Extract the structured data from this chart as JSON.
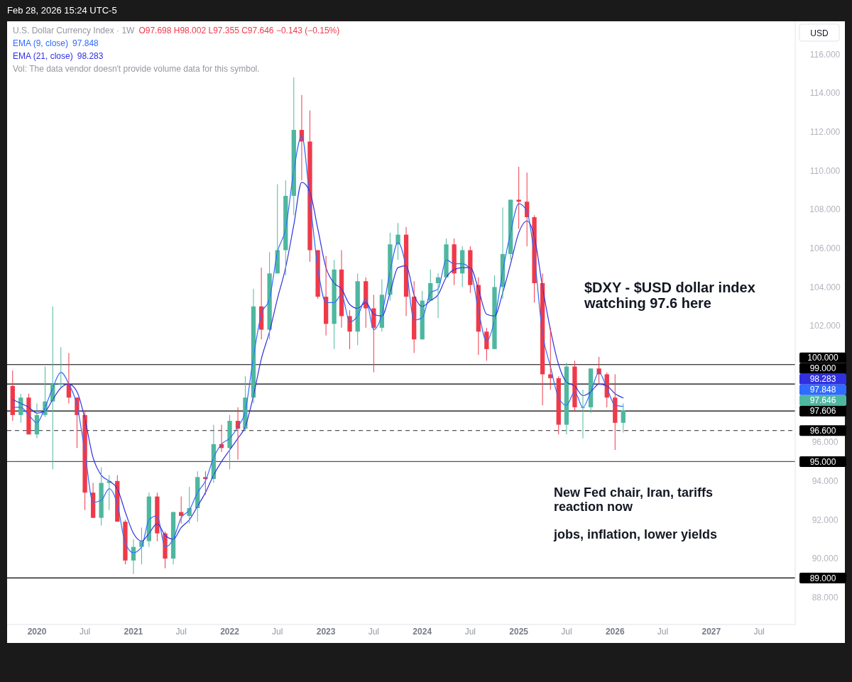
{
  "chart_data": {
    "type": "candlestick",
    "title": "U.S. Dollar Currency Index · 1W",
    "ylabel": "USD",
    "annotations": [
      "Feb 28, 2026 15:24 UTC-5",
      "O97.698 H98.002 L97.355 C97.646 −0.143 (−0.15%)",
      "Vol: The data vendor doesn't provide volume data for this symbol.",
      "$DXY - $USD dollar index\nwatching 97.6 here",
      "New Fed chair, Iran, tariffs\nreaction now",
      "jobs, inflation, lower yields",
      "97.848",
      "98.283",
      "97.646"
    ],
    "x": [
      "2019-10",
      "2019-11",
      "2019-12",
      "2020-01",
      "2020-02",
      "2020-03",
      "2020-04",
      "2020-05",
      "2020-06",
      "2020-07",
      "2020-08",
      "2020-09",
      "2020-10",
      "2020-11",
      "2020-12",
      "2021-01",
      "2021-02",
      "2021-03",
      "2021-04",
      "2021-05",
      "2021-06",
      "2021-07",
      "2021-08",
      "2021-09",
      "2021-10",
      "2021-11",
      "2021-12",
      "2022-01",
      "2022-02",
      "2022-03",
      "2022-04",
      "2022-05",
      "2022-06",
      "2022-07",
      "2022-08",
      "2022-09",
      "2022-10",
      "2022-11",
      "2022-12",
      "2023-01",
      "2023-02",
      "2023-03",
      "2023-04",
      "2023-05",
      "2023-06",
      "2023-07",
      "2023-08",
      "2023-09",
      "2023-10",
      "2023-11",
      "2023-12",
      "2024-01",
      "2024-02",
      "2024-03",
      "2024-04",
      "2024-05",
      "2024-06",
      "2024-07",
      "2024-08",
      "2024-09",
      "2024-10",
      "2024-11",
      "2024-12",
      "2025-01",
      "2025-02",
      "2025-03",
      "2025-04",
      "2025-05",
      "2025-06",
      "2025-07",
      "2025-08",
      "2025-09",
      "2025-10",
      "2025-11",
      "2025-12",
      "2026-01",
      "2026-02"
    ],
    "ohlc": [
      [
        98.9,
        99.7,
        97.1,
        97.4
      ],
      [
        97.4,
        98.5,
        97.0,
        98.3
      ],
      [
        98.3,
        98.5,
        96.4,
        96.4
      ],
      [
        96.4,
        98.0,
        96.2,
        97.4
      ],
      [
        97.4,
        99.9,
        97.3,
        98.1
      ],
      [
        98.1,
        103.0,
        94.6,
        99.0
      ],
      [
        99.0,
        100.9,
        98.8,
        99.0
      ],
      [
        99.0,
        100.6,
        98.0,
        98.3
      ],
      [
        98.3,
        98.3,
        95.7,
        97.4
      ],
      [
        97.4,
        97.6,
        92.5,
        93.4
      ],
      [
        93.4,
        93.9,
        92.1,
        92.1
      ],
      [
        92.1,
        94.7,
        91.7,
        93.9
      ],
      [
        93.9,
        94.3,
        92.5,
        94.0
      ],
      [
        94.0,
        94.3,
        91.9,
        91.9
      ],
      [
        91.9,
        92.0,
        89.7,
        89.9
      ],
      [
        89.9,
        91.0,
        89.2,
        90.6
      ],
      [
        90.6,
        91.6,
        89.7,
        90.9
      ],
      [
        90.9,
        93.4,
        90.6,
        93.2
      ],
      [
        93.2,
        93.4,
        90.9,
        91.3
      ],
      [
        91.3,
        91.4,
        89.5,
        90.0
      ],
      [
        90.0,
        92.4,
        89.7,
        92.4
      ],
      [
        92.4,
        93.2,
        91.8,
        92.2
      ],
      [
        92.2,
        93.7,
        91.8,
        92.6
      ],
      [
        92.6,
        94.5,
        91.9,
        94.2
      ],
      [
        94.2,
        94.5,
        93.3,
        94.1
      ],
      [
        94.1,
        96.9,
        93.9,
        95.9
      ],
      [
        95.9,
        96.9,
        95.5,
        95.7
      ],
      [
        95.7,
        97.4,
        94.6,
        97.1
      ],
      [
        97.1,
        97.8,
        95.1,
        96.7
      ],
      [
        96.7,
        99.4,
        96.6,
        98.3
      ],
      [
        98.3,
        103.9,
        98.0,
        103.0
      ],
      [
        103.0,
        105.0,
        101.3,
        101.8
      ],
      [
        101.8,
        105.8,
        101.3,
        104.7
      ],
      [
        104.7,
        109.3,
        104.7,
        105.9
      ],
      [
        105.9,
        109.5,
        104.6,
        108.7
      ],
      [
        108.7,
        114.8,
        107.7,
        112.1
      ],
      [
        112.1,
        113.9,
        109.5,
        111.5
      ],
      [
        111.5,
        113.1,
        105.3,
        105.9
      ],
      [
        105.9,
        105.9,
        103.4,
        103.5
      ],
      [
        103.5,
        105.6,
        101.5,
        102.1
      ],
      [
        102.1,
        105.4,
        100.8,
        104.9
      ],
      [
        104.9,
        105.9,
        101.9,
        102.5
      ],
      [
        102.5,
        102.8,
        100.8,
        101.7
      ],
      [
        101.7,
        104.7,
        101.0,
        104.3
      ],
      [
        104.3,
        104.5,
        101.9,
        102.9
      ],
      [
        102.9,
        103.6,
        99.6,
        101.9
      ],
      [
        101.9,
        104.4,
        101.7,
        103.6
      ],
      [
        103.6,
        106.8,
        103.3,
        106.2
      ],
      [
        106.2,
        107.3,
        105.4,
        106.7
      ],
      [
        106.7,
        107.1,
        102.5,
        103.5
      ],
      [
        103.5,
        104.3,
        100.6,
        101.3
      ],
      [
        101.3,
        103.8,
        101.3,
        103.3
      ],
      [
        103.3,
        104.9,
        103.3,
        104.2
      ],
      [
        104.2,
        104.7,
        102.4,
        104.5
      ],
      [
        104.5,
        106.5,
        104.5,
        106.2
      ],
      [
        106.2,
        106.5,
        104.1,
        104.7
      ],
      [
        104.7,
        106.1,
        104.0,
        105.9
      ],
      [
        105.9,
        106.1,
        103.7,
        104.1
      ],
      [
        104.1,
        104.5,
        100.5,
        101.7
      ],
      [
        101.7,
        101.9,
        100.2,
        100.8
      ],
      [
        100.8,
        104.6,
        100.8,
        104.0
      ],
      [
        104.0,
        108.1,
        103.4,
        105.7
      ],
      [
        105.7,
        108.5,
        105.4,
        108.5
      ],
      [
        108.5,
        110.2,
        107.0,
        108.4
      ],
      [
        108.4,
        109.9,
        106.1,
        107.6
      ],
      [
        107.6,
        107.7,
        103.2,
        104.2
      ],
      [
        104.2,
        104.7,
        97.9,
        99.5
      ],
      [
        99.5,
        101.9,
        98.7,
        99.3
      ],
      [
        99.3,
        99.4,
        96.4,
        96.9
      ],
      [
        96.9,
        100.1,
        96.4,
        99.9
      ],
      [
        99.9,
        100.2,
        97.6,
        97.8
      ],
      [
        97.8,
        98.7,
        96.2,
        97.8
      ],
      [
        97.8,
        99.8,
        97.5,
        99.8
      ],
      [
        99.8,
        100.4,
        99.0,
        99.5
      ],
      [
        99.5,
        99.6,
        97.8,
        98.3
      ],
      [
        98.3,
        99.5,
        95.6,
        97.0
      ],
      [
        97.0,
        98.0,
        96.5,
        97.646
      ]
    ],
    "colors": [
      "#ef3a4a",
      "#4fb7a0",
      "#ef3a4a",
      "#4fb7a0",
      "#4fb7a0",
      "#4fb7a0",
      "#4fb7a0",
      "#ef3a4a",
      "#ef3a4a",
      "#ef3a4a",
      "#ef3a4a",
      "#4fb7a0",
      "#4fb7a0",
      "#ef3a4a",
      "#ef3a4a",
      "#4fb7a0",
      "#4fb7a0",
      "#4fb7a0",
      "#ef3a4a",
      "#ef3a4a",
      "#4fb7a0",
      "#ef3a4a",
      "#4fb7a0",
      "#4fb7a0",
      "#ef3a4a",
      "#4fb7a0",
      "#ef3a4a",
      "#4fb7a0",
      "#ef3a4a",
      "#4fb7a0",
      "#4fb7a0",
      "#ef3a4a",
      "#4fb7a0",
      "#4fb7a0",
      "#4fb7a0",
      "#4fb7a0",
      "#ef3a4a",
      "#ef3a4a",
      "#ef3a4a",
      "#ef3a4a",
      "#4fb7a0",
      "#ef3a4a",
      "#ef3a4a",
      "#4fb7a0",
      "#ef3a4a",
      "#ef3a4a",
      "#4fb7a0",
      "#4fb7a0",
      "#4fb7a0",
      "#ef3a4a",
      "#ef3a4a",
      "#4fb7a0",
      "#4fb7a0",
      "#4fb7a0",
      "#4fb7a0",
      "#ef3a4a",
      "#4fb7a0",
      "#ef3a4a",
      "#ef3a4a",
      "#ef3a4a",
      "#4fb7a0",
      "#4fb7a0",
      "#4fb7a0",
      "#ef3a4a",
      "#ef3a4a",
      "#ef3a4a",
      "#ef3a4a",
      "#ef3a4a",
      "#ef3a4a",
      "#4fb7a0",
      "#ef3a4a",
      "#4fb7a0",
      "#4fb7a0",
      "#ef3a4a",
      "#ef3a4a",
      "#ef3a4a",
      "#4fb7a0"
    ],
    "series": [
      {
        "type": "line",
        "name": "EMA (9, close)",
        "color": "#2f6bff",
        "values": [
          97.8,
          97.8,
          97.4,
          97.0,
          97.8,
          98.8,
          99.6,
          99.0,
          97.9,
          95.5,
          92.9,
          93.0,
          93.6,
          92.8,
          90.8,
          90.3,
          90.6,
          92.0,
          92.2,
          90.6,
          91.0,
          92.1,
          92.5,
          93.4,
          94.0,
          95.2,
          95.9,
          96.2,
          96.8,
          97.6,
          100.4,
          102.6,
          103.4,
          105.8,
          107.0,
          110.0,
          111.8,
          108.5,
          105.0,
          103.2,
          103.2,
          103.6,
          102.2,
          102.5,
          103.4,
          101.8,
          102.6,
          104.8,
          106.3,
          105.0,
          102.3,
          102.4,
          103.7,
          103.9,
          105.4,
          105.2,
          105.2,
          104.9,
          102.8,
          101.2,
          102.3,
          104.8,
          106.8,
          108.3,
          107.9,
          105.6,
          101.6,
          99.9,
          98.3,
          97.9,
          98.6,
          97.8,
          98.6,
          99.6,
          98.8,
          97.9,
          97.848
        ]
      },
      {
        "type": "line",
        "name": "EMA (21, close)",
        "color": "#3030e0",
        "values": [
          98.2,
          98.0,
          97.8,
          97.5,
          97.6,
          98.2,
          98.8,
          99.0,
          98.6,
          97.2,
          95.2,
          94.3,
          94.0,
          93.6,
          92.4,
          91.3,
          90.9,
          91.3,
          91.8,
          91.2,
          91.0,
          91.6,
          92.0,
          92.7,
          93.4,
          94.3,
          95.0,
          95.6,
          96.2,
          96.8,
          98.4,
          100.3,
          101.7,
          103.4,
          105.0,
          107.2,
          109.4,
          108.9,
          107.0,
          105.0,
          104.2,
          103.9,
          103.1,
          102.9,
          103.2,
          102.6,
          102.5,
          103.7,
          105.0,
          105.1,
          103.6,
          103.0,
          103.3,
          103.6,
          104.5,
          104.9,
          105.0,
          105.0,
          103.9,
          102.6,
          102.5,
          103.7,
          105.2,
          106.8,
          107.4,
          106.6,
          104.0,
          101.8,
          100.0,
          99.1,
          98.9,
          98.4,
          98.6,
          99.0,
          98.9,
          98.5,
          98.283
        ]
      }
    ],
    "ref_lines": [
      {
        "axis": "y",
        "value": 100,
        "label": "100.000",
        "color": "#000000"
      },
      {
        "axis": "y",
        "value": 99,
        "label": "99.000",
        "color": "#000000"
      },
      {
        "axis": "y",
        "value": 97.606,
        "label": "97.606",
        "color": "#000000"
      },
      {
        "axis": "y",
        "value": 96.6,
        "label": "96.600",
        "color": "#555555",
        "line_style": "dashed"
      },
      {
        "axis": "y",
        "value": 95,
        "label": "95.000",
        "color": "#555555"
      },
      {
        "axis": "y",
        "value": 89,
        "label": "89.000",
        "color": "#000000"
      }
    ],
    "xlim": [
      "2019-09-10",
      "2027-11-15"
    ],
    "xticks": [
      {
        "value": "2020-01-01",
        "label": "2020"
      },
      {
        "value": "2020-07-01",
        "label": "Jul"
      },
      {
        "value": "2021-01-01",
        "label": "2021"
      },
      {
        "value": "2021-07-01",
        "label": "Jul"
      },
      {
        "value": "2022-01-01",
        "label": "2022"
      },
      {
        "value": "2022-07-01",
        "label": "Jul"
      },
      {
        "value": "2023-01-01",
        "label": "2023"
      },
      {
        "value": "2023-07-01",
        "label": "Jul"
      },
      {
        "value": "2024-01-01",
        "label": "2024"
      },
      {
        "value": "2024-07-01",
        "label": "Jul"
      },
      {
        "value": "2025-01-01",
        "label": "2025"
      },
      {
        "value": "2025-07-01",
        "label": "Jul"
      },
      {
        "value": "2026-01-01",
        "label": "2026"
      },
      {
        "value": "2026-07-01",
        "label": "Jul"
      },
      {
        "value": "2027-01-01",
        "label": "2027"
      },
      {
        "value": "2027-07-01",
        "label": "Jul"
      }
    ],
    "ylim": [
      86.6,
      117.7
    ],
    "yticks": [
      {
        "value": 88,
        "label": "88.000"
      },
      {
        "value": 90,
        "label": "90.000"
      },
      {
        "value": 92,
        "label": "92.000"
      },
      {
        "value": 94,
        "label": "94.000"
      },
      {
        "value": 96,
        "label": "96.000"
      },
      {
        "value": 102,
        "label": "102.000"
      },
      {
        "value": 104,
        "label": "104.000"
      },
      {
        "value": 106,
        "label": "106.000"
      },
      {
        "value": 108,
        "label": "108.000"
      },
      {
        "value": 110,
        "label": "110.000"
      },
      {
        "value": 112,
        "label": "112.000"
      },
      {
        "value": 114,
        "label": "114.000"
      },
      {
        "value": 116,
        "label": "116.000"
      }
    ]
  }
}
